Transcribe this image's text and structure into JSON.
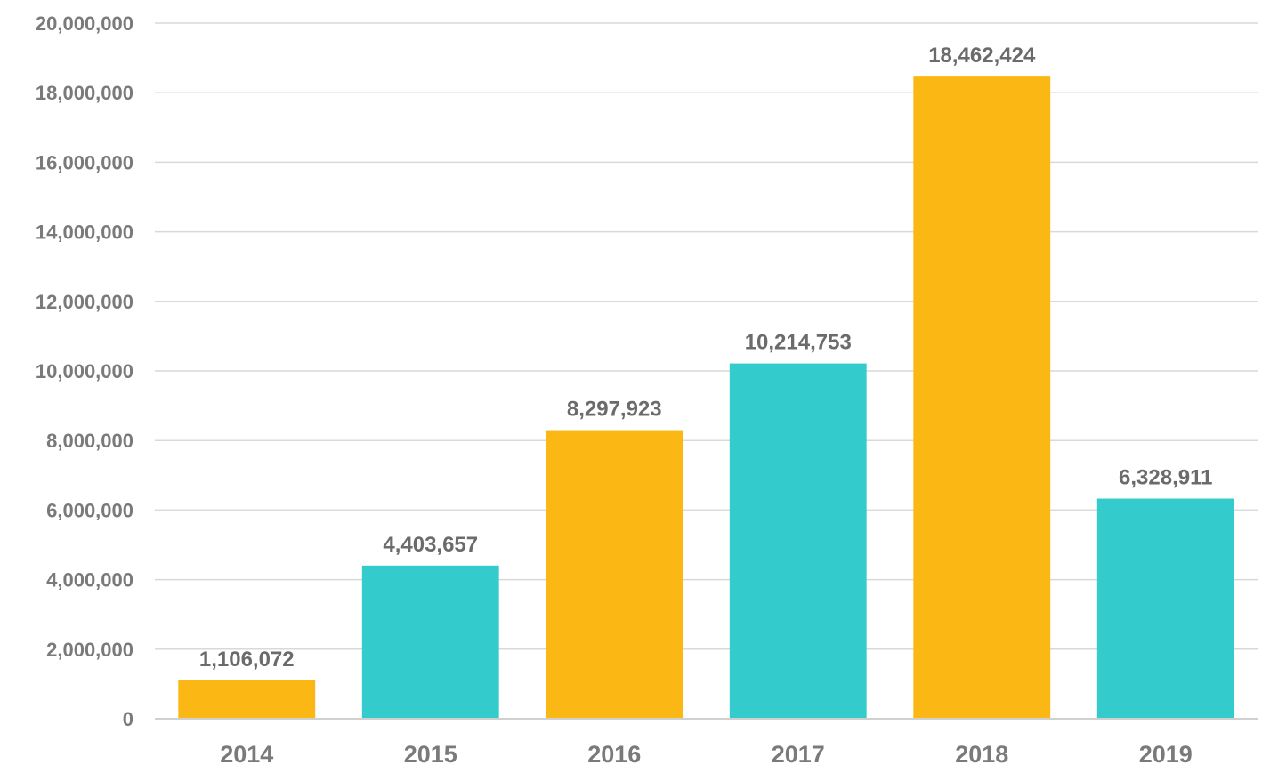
{
  "chart_data": {
    "type": "bar",
    "title": "",
    "xlabel": "",
    "ylabel": "",
    "categories": [
      "2014",
      "2015",
      "2016",
      "2017",
      "2018",
      "2019"
    ],
    "values": [
      1106072,
      4403657,
      8297923,
      10214753,
      18462424,
      6328911
    ],
    "value_labels": [
      "1,106,072",
      "4,403,657",
      "8,297,923",
      "10,214,753",
      "18,462,424",
      "6,328,911"
    ],
    "bar_colors": [
      "#FBB714",
      "#33CBCB",
      "#FBB714",
      "#33CBCB",
      "#FBB714",
      "#33CBCB"
    ],
    "ylim": [
      0,
      20000000
    ],
    "yticks": [
      0,
      2000000,
      4000000,
      6000000,
      8000000,
      10000000,
      12000000,
      14000000,
      16000000,
      18000000,
      20000000
    ],
    "ytick_labels": [
      "0",
      "2,000,000",
      "4,000,000",
      "6,000,000",
      "8,000,000",
      "10,000,000",
      "12,000,000",
      "14,000,000",
      "16,000,000",
      "18,000,000",
      "20,000,000"
    ],
    "grid": true,
    "legend": "none"
  }
}
